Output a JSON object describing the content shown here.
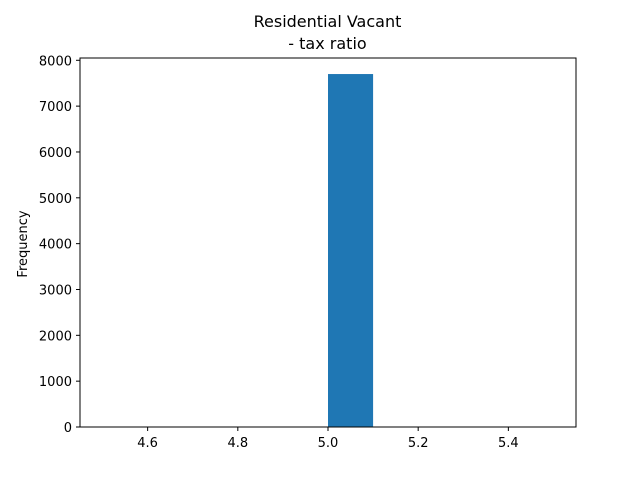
{
  "chart_data": {
    "type": "bar",
    "title_line1": "Residential Vacant",
    "title_line2": "- tax ratio",
    "xlabel": "",
    "ylabel": "Frequency",
    "xlim": [
      4.45,
      5.55
    ],
    "ylim": [
      0,
      8050
    ],
    "x_ticks": [
      4.6,
      4.8,
      5.0,
      5.2,
      5.4
    ],
    "x_tick_labels": [
      "4.6",
      "4.8",
      "5.0",
      "5.2",
      "5.4"
    ],
    "y_ticks": [
      0,
      1000,
      2000,
      3000,
      4000,
      5000,
      6000,
      7000,
      8000
    ],
    "y_tick_labels": [
      "0",
      "1000",
      "2000",
      "3000",
      "4000",
      "5000",
      "6000",
      "7000",
      "8000"
    ],
    "bins": [
      {
        "x0": 4.5,
        "x1": 4.6,
        "count": 0
      },
      {
        "x0": 4.6,
        "x1": 4.7,
        "count": 0
      },
      {
        "x0": 4.7,
        "x1": 4.8,
        "count": 0
      },
      {
        "x0": 4.8,
        "x1": 4.9,
        "count": 0
      },
      {
        "x0": 4.9,
        "x1": 5.0,
        "count": 0
      },
      {
        "x0": 5.0,
        "x1": 5.1,
        "count": 7700
      },
      {
        "x0": 5.1,
        "x1": 5.2,
        "count": 0
      },
      {
        "x0": 5.2,
        "x1": 5.3,
        "count": 0
      },
      {
        "x0": 5.3,
        "x1": 5.4,
        "count": 0
      },
      {
        "x0": 5.4,
        "x1": 5.5,
        "count": 0
      }
    ],
    "bar_color": "#1f77b4",
    "grid": false,
    "legend": "none"
  }
}
